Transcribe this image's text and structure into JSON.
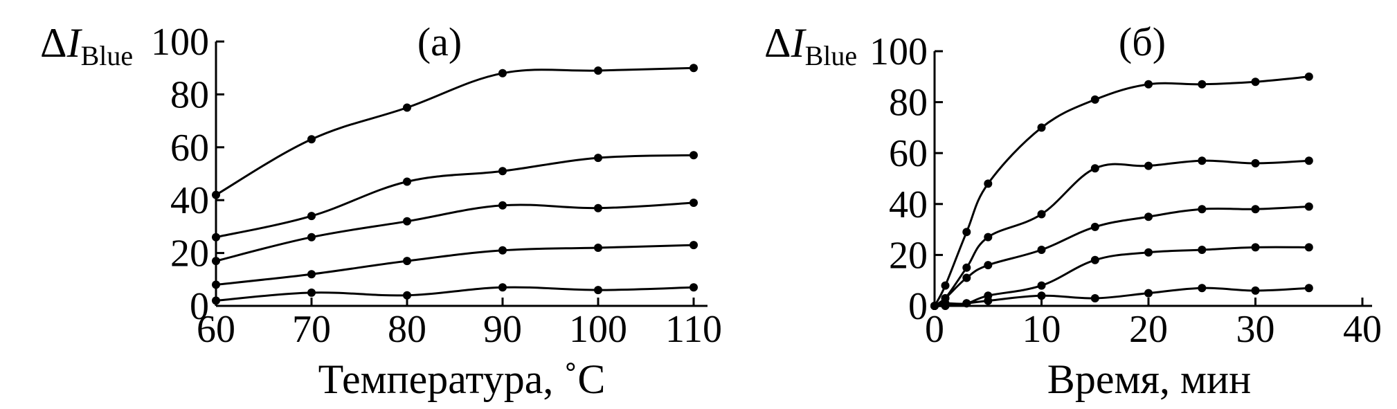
{
  "chart_data": [
    {
      "type": "line",
      "panel_label": "(а)",
      "xlabel": "Температура, ˚C",
      "ylabel": {
        "delta": "Δ",
        "var": "I",
        "sub": "Blue"
      },
      "xlim": [
        60,
        110
      ],
      "ylim": [
        0,
        100
      ],
      "xticks": [
        "60",
        "70",
        "80",
        "90",
        "100",
        "110"
      ],
      "yticks": [
        "0",
        "20",
        "40",
        "60",
        "80",
        "100"
      ],
      "x": [
        60,
        70,
        80,
        90,
        100,
        110
      ],
      "series": [
        {
          "values": [
            42,
            63,
            75,
            88,
            89,
            90
          ]
        },
        {
          "values": [
            26,
            34,
            47,
            51,
            56,
            57
          ]
        },
        {
          "values": [
            17,
            26,
            32,
            38,
            37,
            39
          ]
        },
        {
          "values": [
            8,
            12,
            17,
            21,
            22,
            23
          ]
        },
        {
          "values": [
            2,
            5,
            4,
            7,
            6,
            7
          ]
        }
      ]
    },
    {
      "type": "line",
      "panel_label": "(б)",
      "xlabel": "Время, мин",
      "ylabel": {
        "delta": "Δ",
        "var": "I",
        "sub": "Blue"
      },
      "xlim": [
        0,
        40
      ],
      "ylim": [
        0,
        100
      ],
      "xticks": [
        "0",
        "10",
        "20",
        "30",
        "40"
      ],
      "yticks": [
        "0",
        "20",
        "40",
        "60",
        "80",
        "100"
      ],
      "x": [
        0,
        1,
        3,
        5,
        10,
        15,
        20,
        25,
        30,
        35
      ],
      "series": [
        {
          "values": [
            0,
            8,
            29,
            48,
            70,
            81,
            87,
            87,
            88,
            90
          ]
        },
        {
          "values": [
            0,
            3,
            15,
            27,
            36,
            54,
            55,
            57,
            56,
            57
          ]
        },
        {
          "values": [
            0,
            3,
            11,
            16,
            22,
            31,
            35,
            38,
            38,
            39
          ]
        },
        {
          "values": [
            0,
            1,
            1,
            4,
            8,
            18,
            21,
            22,
            23,
            23
          ]
        },
        {
          "values": [
            0,
            0,
            1,
            2,
            4,
            3,
            5,
            7,
            6,
            7
          ]
        }
      ]
    }
  ]
}
